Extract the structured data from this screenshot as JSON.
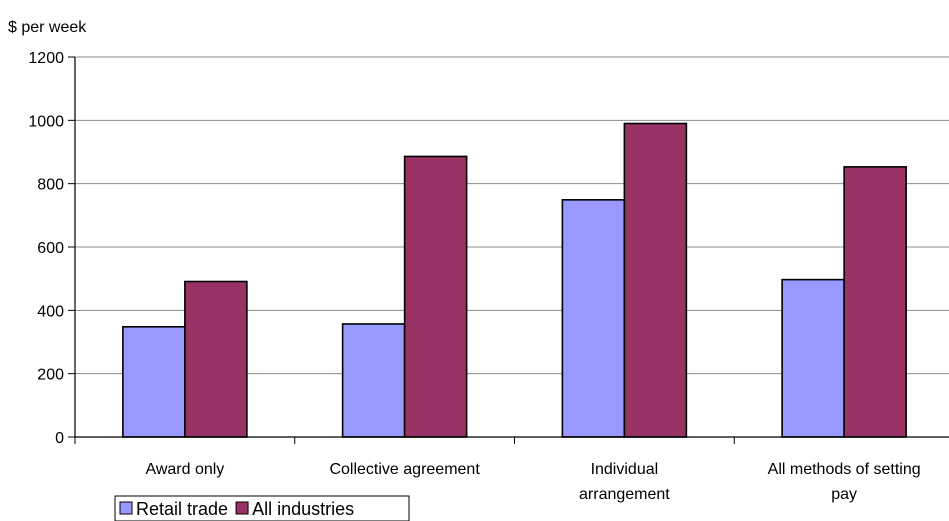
{
  "chart_data": {
    "type": "bar",
    "unit_label": "$ per week",
    "categories": [
      [
        "Award only"
      ],
      [
        "Collective agreement"
      ],
      [
        "Individual",
        "arrangement"
      ],
      [
        "All methods of setting",
        "pay"
      ]
    ],
    "series": [
      {
        "name": "Retail trade",
        "color": "#9999ff",
        "values": [
          348,
          357,
          749,
          497
        ]
      },
      {
        "name": "All industries",
        "color": "#993366",
        "values": [
          491,
          886,
          990,
          853
        ]
      }
    ],
    "ylim": [
      0,
      1200
    ],
    "yticks": [
      0,
      200,
      400,
      600,
      800,
      1000,
      1200
    ],
    "grid": true,
    "legend_position": "bottom-left"
  }
}
